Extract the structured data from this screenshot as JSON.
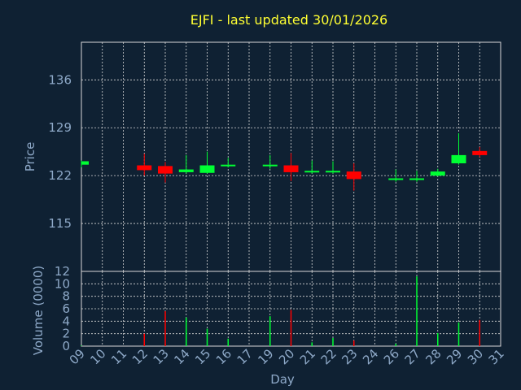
{
  "chart_data": {
    "type": "candlestick",
    "title": "EJFI - last updated 30/01/2026",
    "xlabel": "Day",
    "colors": {
      "up": "#00ff33",
      "down": "#ff0000",
      "background": "#0f2133",
      "grid": "#d8d8d8",
      "text": "#8ea9c8",
      "title": "#ffff33"
    },
    "x_ticks": [
      "09",
      "10",
      "11",
      "12",
      "13",
      "14",
      "15",
      "16",
      "17",
      "19",
      "20",
      "21",
      "22",
      "23",
      "24",
      "26",
      "27",
      "28",
      "29",
      "30",
      "31"
    ],
    "price_panel": {
      "ylabel": "Price",
      "ylim": [
        108,
        141.5
      ],
      "y_ticks": [
        115,
        122,
        129,
        136
      ],
      "candles": [
        {
          "day": "09",
          "open": 123.6,
          "high": 124.2,
          "low": 123.2,
          "close": 124.1
        },
        {
          "day": "12",
          "open": 123.5,
          "high": 125.2,
          "low": 122.0,
          "close": 122.8
        },
        {
          "day": "13",
          "open": 123.4,
          "high": 124.0,
          "low": 121.0,
          "close": 122.3
        },
        {
          "day": "14",
          "open": 122.5,
          "high": 125.0,
          "low": 122.3,
          "close": 122.9
        },
        {
          "day": "15",
          "open": 122.4,
          "high": 125.5,
          "low": 122.3,
          "close": 123.5
        },
        {
          "day": "16",
          "open": 123.4,
          "high": 124.6,
          "low": 123.2,
          "close": 123.6
        },
        {
          "day": "19",
          "open": 123.4,
          "high": 125.0,
          "low": 123.0,
          "close": 123.6
        },
        {
          "day": "20",
          "open": 123.5,
          "high": 125.3,
          "low": 121.2,
          "close": 122.5
        },
        {
          "day": "21",
          "open": 122.5,
          "high": 124.2,
          "low": 122.3,
          "close": 122.7
        },
        {
          "day": "22",
          "open": 122.5,
          "high": 124.1,
          "low": 122.3,
          "close": 122.7
        },
        {
          "day": "23",
          "open": 122.6,
          "high": 123.8,
          "low": 119.8,
          "close": 121.5
        },
        {
          "day": "26",
          "open": 121.4,
          "high": 122.9,
          "low": 121.1,
          "close": 121.6
        },
        {
          "day": "27",
          "open": 121.4,
          "high": 122.7,
          "low": 121.1,
          "close": 121.6
        },
        {
          "day": "28",
          "open": 122.0,
          "high": 123.0,
          "low": 121.9,
          "close": 122.6
        },
        {
          "day": "29",
          "open": 123.8,
          "high": 128.2,
          "low": 123.6,
          "close": 125.0
        },
        {
          "day": "30",
          "open": 125.6,
          "high": 126.2,
          "low": 124.7,
          "close": 125.0
        }
      ]
    },
    "volume_panel": {
      "ylabel": "Volume (0000)",
      "ylim": [
        0,
        12
      ],
      "y_ticks": [
        0,
        2,
        4,
        6,
        8,
        10,
        12
      ],
      "bars": [
        {
          "day": "09",
          "value": 0.1,
          "direction": "up"
        },
        {
          "day": "12",
          "value": 2.0,
          "direction": "down"
        },
        {
          "day": "13",
          "value": 5.6,
          "direction": "down"
        },
        {
          "day": "14",
          "value": 4.6,
          "direction": "up"
        },
        {
          "day": "15",
          "value": 2.8,
          "direction": "up"
        },
        {
          "day": "16",
          "value": 1.2,
          "direction": "up"
        },
        {
          "day": "19",
          "value": 4.8,
          "direction": "up"
        },
        {
          "day": "20",
          "value": 5.8,
          "direction": "down"
        },
        {
          "day": "21",
          "value": 0.6,
          "direction": "up"
        },
        {
          "day": "22",
          "value": 1.3,
          "direction": "up"
        },
        {
          "day": "23",
          "value": 0.9,
          "direction": "down"
        },
        {
          "day": "26",
          "value": 0.4,
          "direction": "up"
        },
        {
          "day": "27",
          "value": 11.2,
          "direction": "up"
        },
        {
          "day": "28",
          "value": 2.1,
          "direction": "up"
        },
        {
          "day": "29",
          "value": 3.8,
          "direction": "up"
        },
        {
          "day": "30",
          "value": 4.2,
          "direction": "down"
        }
      ]
    }
  }
}
